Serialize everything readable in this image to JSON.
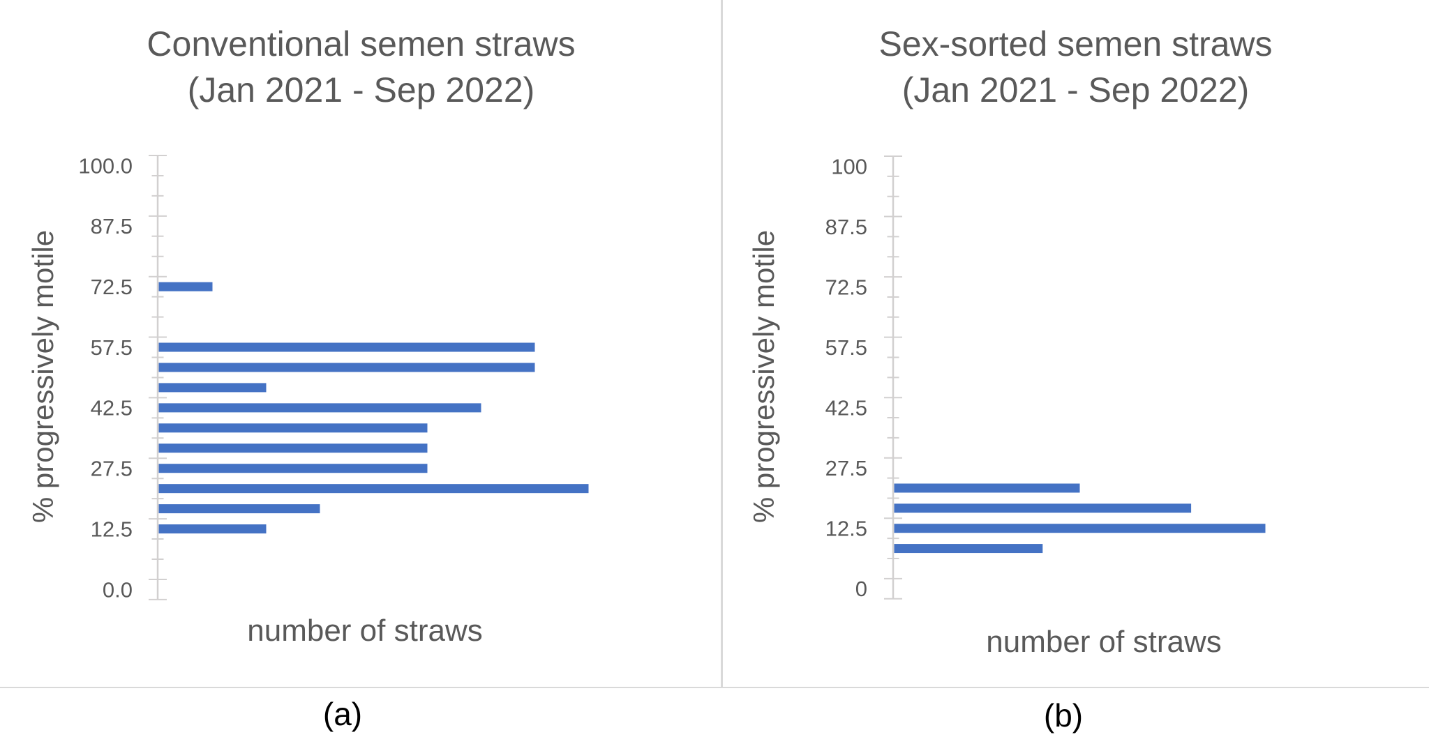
{
  "figure": {
    "background": "#FFFFFF",
    "border_color": "#D9D9D9",
    "colors": {
      "bar_fill": "#4472C4",
      "axis_line": "#D2D0D0",
      "tick_mark": "#D2D0D0",
      "chart_text": "#595959",
      "caption_text": "#000000"
    }
  },
  "chart_data": [
    {
      "type": "bar",
      "orientation": "horizontal",
      "title": "Conventional semen straws",
      "subtitle": "(Jan 2021 - Sep 2022)",
      "xlabel": "number of straws",
      "ylabel": "% progressively motile",
      "panel_caption": "(a)",
      "legend": false,
      "gridlines": false,
      "y_axis": {
        "direction": "descending_top_to_bottom",
        "tick_labels": [
          "100.0",
          "87.5",
          "72.5",
          "57.5",
          "42.5",
          "27.5",
          "12.5",
          "0.0"
        ],
        "category_slots_per_labeled_tick": 3,
        "total_category_slots": 22
      },
      "x_axis": {
        "tick_labels_shown": false,
        "max_straws_drawn": 8
      },
      "points": [
        {
          "pct_progressively_motile": 72.5,
          "straws": 1,
          "slot": 6
        },
        {
          "pct_progressively_motile": 57.5,
          "straws": 7,
          "slot": 9
        },
        {
          "pct_progressively_motile": 52.5,
          "straws": 7,
          "slot": 10
        },
        {
          "pct_progressively_motile": 47.5,
          "straws": 2,
          "slot": 11
        },
        {
          "pct_progressively_motile": 42.5,
          "straws": 6,
          "slot": 12
        },
        {
          "pct_progressively_motile": 37.5,
          "straws": 5,
          "slot": 13
        },
        {
          "pct_progressively_motile": 32.5,
          "straws": 5,
          "slot": 14
        },
        {
          "pct_progressively_motile": 27.5,
          "straws": 5,
          "slot": 15
        },
        {
          "pct_progressively_motile": 22.5,
          "straws": 8,
          "slot": 16
        },
        {
          "pct_progressively_motile": 17.5,
          "straws": 3,
          "slot": 17
        },
        {
          "pct_progressively_motile": 12.5,
          "straws": 2,
          "slot": 18
        }
      ]
    },
    {
      "type": "bar",
      "orientation": "horizontal",
      "title": "Sex-sorted semen straws",
      "subtitle": "(Jan 2021 - Sep 2022)",
      "xlabel": "number of straws",
      "ylabel": "% progressively motile",
      "panel_caption": "(b)",
      "legend": false,
      "gridlines": false,
      "y_axis": {
        "direction": "descending_top_to_bottom",
        "tick_labels": [
          "100",
          "87.5",
          "72.5",
          "57.5",
          "42.5",
          "27.5",
          "12.5",
          "0"
        ],
        "category_slots_per_labeled_tick": 3,
        "total_category_slots": 22
      },
      "x_axis": {
        "tick_labels_shown": false,
        "max_straws_drawn": 10
      },
      "points": [
        {
          "pct_progressively_motile": 22.5,
          "straws": 5,
          "slot": 16
        },
        {
          "pct_progressively_motile": 17.5,
          "straws": 8,
          "slot": 17
        },
        {
          "pct_progressively_motile": 12.5,
          "straws": 10,
          "slot": 18
        },
        {
          "pct_progressively_motile": 7.5,
          "straws": 4,
          "slot": 19
        }
      ]
    }
  ]
}
